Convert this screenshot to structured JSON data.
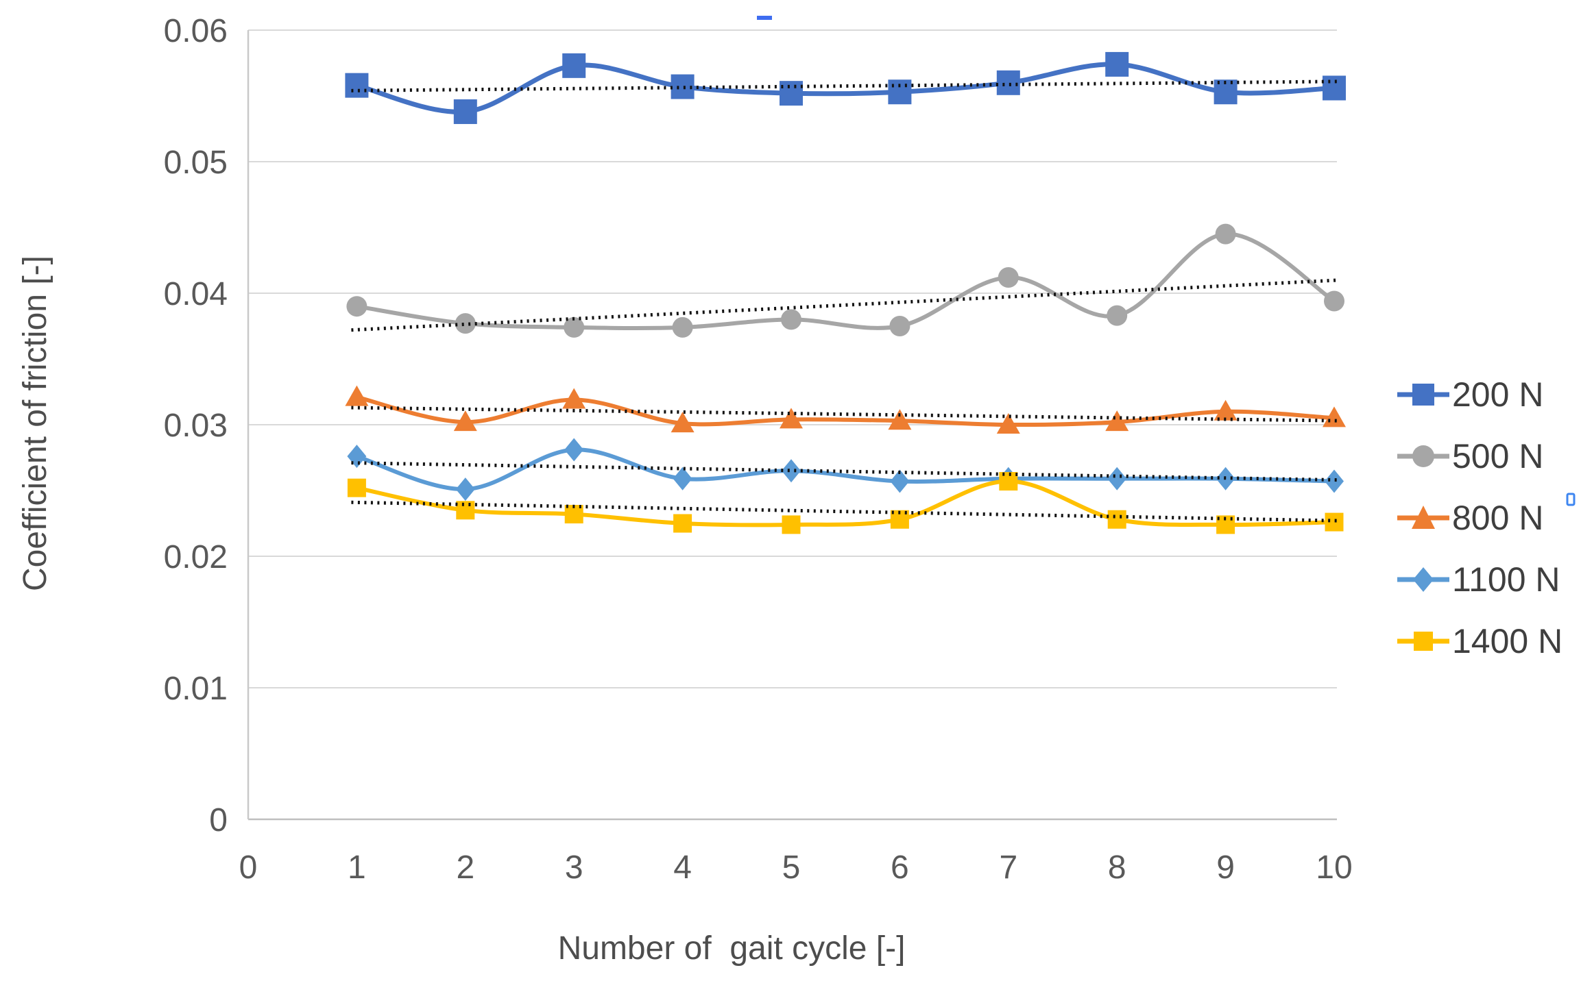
{
  "chart_data": {
    "type": "line",
    "title": "",
    "xlabel": "Number of  gait cycle [-]",
    "ylabel": "Coefficient of friction [-]",
    "x": [
      1,
      2,
      3,
      4,
      5,
      6,
      7,
      8,
      9,
      10
    ],
    "x_ticks": [
      "0",
      "1",
      "2",
      "3",
      "4",
      "5",
      "6",
      "7",
      "8",
      "9",
      "10"
    ],
    "y_ticks": [
      "0",
      "0.01",
      "0.02",
      "0.03",
      "0.04",
      "0.05",
      "0.06"
    ],
    "xlim": [
      0,
      10
    ],
    "ylim": [
      0,
      0.06
    ],
    "grid": "horizontal",
    "legend_position": "right",
    "trendline_style": "dotted",
    "trendline_color": "#111111",
    "series": [
      {
        "name": "200 N",
        "color": "#4472C4",
        "marker": "square",
        "values": [
          0.0558,
          0.0538,
          0.0573,
          0.0557,
          0.0552,
          0.0553,
          0.056,
          0.0574,
          0.0553,
          0.0556
        ],
        "trendline": {
          "start": 0.0554,
          "end": 0.0561
        }
      },
      {
        "name": "500 N",
        "color": "#A6A6A6",
        "marker": "circle",
        "values": [
          0.039,
          0.0377,
          0.0374,
          0.0374,
          0.038,
          0.0375,
          0.0412,
          0.0383,
          0.0445,
          0.0394
        ],
        "trendline": {
          "start": 0.0372,
          "end": 0.041
        }
      },
      {
        "name": "800 N",
        "color": "#ED7D31",
        "marker": "triangle",
        "values": [
          0.0321,
          0.0302,
          0.0319,
          0.0301,
          0.0304,
          0.0303,
          0.03,
          0.0302,
          0.031,
          0.0305
        ],
        "trendline": {
          "start": 0.0313,
          "end": 0.0303
        }
      },
      {
        "name": "1100 N",
        "color": "#5B9BD5",
        "marker": "diamond",
        "values": [
          0.0276,
          0.0251,
          0.0281,
          0.0259,
          0.0265,
          0.0257,
          0.0259,
          0.0259,
          0.0259,
          0.0257
        ],
        "trendline": {
          "start": 0.0271,
          "end": 0.0258
        }
      },
      {
        "name": "1400 N",
        "color": "#FFC000",
        "marker": "square-small",
        "values": [
          0.0252,
          0.0235,
          0.0232,
          0.0225,
          0.0224,
          0.0228,
          0.0257,
          0.0228,
          0.0224,
          0.0226
        ],
        "trendline": {
          "start": 0.0241,
          "end": 0.0227
        }
      }
    ]
  },
  "artifacts": {
    "dash_color": "#3E6DF0",
    "bracket_color": "#3E86F0"
  }
}
